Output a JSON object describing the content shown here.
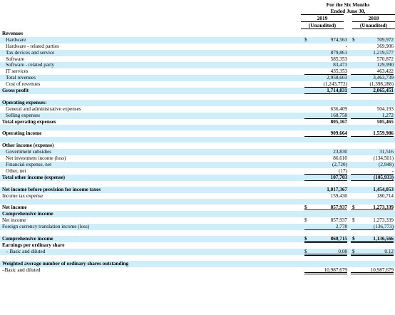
{
  "header": {
    "period_line1": "For the Six Months",
    "period_line2": "Ended June 30,",
    "year_1": "2019",
    "year_2": "2018",
    "status_1": "(Unaudited)",
    "status_2": "(Unaudited)"
  },
  "rows": [
    {
      "label": "Revenues",
      "bold": true,
      "shade": false
    },
    {
      "label": "Hardware",
      "indent": true,
      "c1": "$",
      "v1": "974,563",
      "c2": "$",
      "v2": "709,972",
      "shade": true
    },
    {
      "label": "Hardware - related parties",
      "indent": true,
      "v1": "-",
      "v2": "369,906",
      "shade": false
    },
    {
      "label": "Tax devices and service",
      "indent": true,
      "v1": "879,861",
      "v2": "1,219,577",
      "shade": true
    },
    {
      "label": "Software",
      "indent": true,
      "v1": "585,353",
      "v2": "570,872",
      "shade": false
    },
    {
      "label": "Software - related party",
      "indent": true,
      "v1": "83,473",
      "v2": "129,990",
      "shade": true
    },
    {
      "label": "IT services",
      "indent": true,
      "v1": "435,353",
      "v2": "463,422",
      "shade": false,
      "ul": true
    },
    {
      "label": "Total revenues",
      "indent": true,
      "v1": "2,958,603",
      "v2": "3,463,739",
      "shade": true
    },
    {
      "label": "Cost of revenues",
      "indent": true,
      "v1": "(1,243,772)",
      "v2": "(1,398,288)",
      "shade": false,
      "ul": true
    },
    {
      "label": "Gross profit",
      "bold": true,
      "v1": "1,714,831",
      "v2": "2,065,451",
      "shade": true,
      "ul": true
    },
    {
      "gap": true
    },
    {
      "label": "Operating expenses:",
      "bold": true,
      "shade": true
    },
    {
      "label": "General and administrative expenses",
      "indent": true,
      "v1": "636,409",
      "v2": "504,193",
      "shade": false
    },
    {
      "label": "Selling expenses",
      "indent": true,
      "v1": "168,758",
      "v2": "1,272",
      "shade": true,
      "ul": true
    },
    {
      "label": "Total operating expenses",
      "bold": true,
      "v1": "805,167",
      "v2": "505,465",
      "shade": false,
      "ul": true
    },
    {
      "gap": true,
      "shade": true
    },
    {
      "label": "Operating income",
      "bold": true,
      "v1": "909,664",
      "v2": "1,559,986",
      "shade": false,
      "ul": true
    },
    {
      "gap": true,
      "shade": true
    },
    {
      "label": "Other income (expense)",
      "bold": true,
      "shade": false
    },
    {
      "label": "Government subsidies",
      "indent": true,
      "v1": "23,830",
      "v2": "31,516",
      "shade": true
    },
    {
      "label": "Net investment income (loss)",
      "indent": true,
      "v1": "86,610",
      "v2": "(134,501)",
      "shade": false
    },
    {
      "label": "Financial expense, net",
      "indent": true,
      "v1": "(2,720)",
      "v2": "(2,948)",
      "shade": true
    },
    {
      "label": "Other, net",
      "indent": true,
      "v1": "(17)",
      "v2": "-",
      "shade": false,
      "ul": true
    },
    {
      "label": "Total other income (expense)",
      "bold": true,
      "v1": "107,703",
      "v2": "(105,933)",
      "shade": true,
      "ul": true
    },
    {
      "gap": true
    },
    {
      "label": "Net income before provision for income taxes",
      "bold": true,
      "v1": "1,017,367",
      "v2": "1,454,053",
      "shade": true
    },
    {
      "label": "Income tax expense",
      "indent": false,
      "v1": "159,430",
      "v2": "180,714",
      "shade": false,
      "ul": true
    },
    {
      "gap": true,
      "shade": true
    },
    {
      "label": "Net income",
      "bold": true,
      "c1": "$",
      "v1": "857,937",
      "c2": "$",
      "v2": "1,273,339",
      "shade": false,
      "dbl": true
    },
    {
      "label": "Comprehensive income",
      "bold": true,
      "shade": true
    },
    {
      "label": "Net income",
      "indent": false,
      "c1": "$",
      "v1": "857,937",
      "c2": "$",
      "v2": "1,273,339",
      "shade": false
    },
    {
      "label": "Foreign currency translation income (loss)",
      "indent": false,
      "v1": "2,778",
      "v2": "(136,773)",
      "shade": true,
      "ul": true
    },
    {
      "gap": true
    },
    {
      "label": "Comprehensive income",
      "bold": true,
      "c1": "$",
      "v1": "860,715",
      "c2": "$",
      "v2": "1,136,566",
      "shade": true,
      "dbl": true
    },
    {
      "label": "Earnings per ordinary share",
      "bold": true,
      "shade": false
    },
    {
      "label": "– Basic and diluted",
      "indent": true,
      "c1": "$",
      "v1": "0.08",
      "c2": "$",
      "v2": "0.12",
      "shade": true,
      "dbl": true
    },
    {
      "gap": true
    },
    {
      "label": "Weighted average number of ordinary shares outstanding",
      "bold": true,
      "shade": true
    },
    {
      "label": "–Basic and diluted",
      "indent": false,
      "v1": "10,987,679",
      "v2": "10,987,679",
      "shade": false,
      "dbl": true
    }
  ]
}
